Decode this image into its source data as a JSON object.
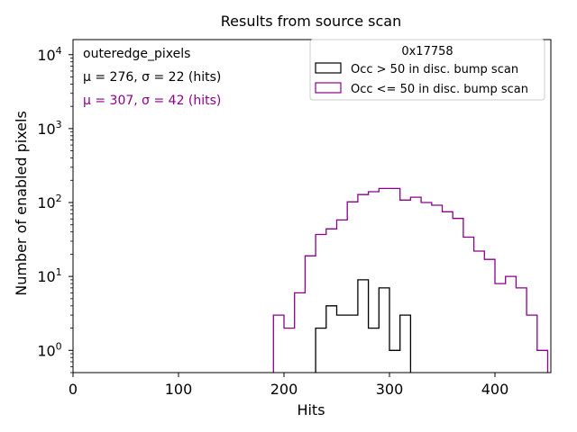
{
  "chart_data": {
    "type": "histogram",
    "title": "Results from source scan",
    "xlabel": "Hits",
    "ylabel": "Number of enabled pixels",
    "xlim": [
      0,
      453
    ],
    "ylim": [
      0.5,
      16000
    ],
    "yscale": "log",
    "xticks": [
      0,
      100,
      200,
      300,
      400
    ],
    "yticks": [
      {
        "value": 1,
        "base": "10",
        "exp": "0"
      },
      {
        "value": 10,
        "base": "10",
        "exp": "1"
      },
      {
        "value": 100,
        "base": "10",
        "exp": "2"
      },
      {
        "value": 1000,
        "base": "10",
        "exp": "3"
      },
      {
        "value": 10000,
        "base": "10",
        "exp": "4"
      }
    ],
    "bin_width": 10,
    "annotations": {
      "name": "outeredge_pixels",
      "series1_stats": "μ = 276, σ = 22 (hits)",
      "series2_stats": "μ = 307, σ = 42 (hits)"
    },
    "legend": {
      "title": "0x17758",
      "position": "top-right"
    },
    "series": [
      {
        "name": "Occ > 50 in disc. bump scan",
        "color": "#000000",
        "bins": [
          [
            230,
            2
          ],
          [
            240,
            4
          ],
          [
            250,
            3
          ],
          [
            260,
            3
          ],
          [
            270,
            9
          ],
          [
            280,
            2
          ],
          [
            290,
            7
          ],
          [
            300,
            1
          ],
          [
            310,
            3
          ]
        ]
      },
      {
        "name": "Occ <= 50 in disc. bump scan",
        "color": "#8b008b",
        "bins": [
          [
            190,
            3
          ],
          [
            200,
            2
          ],
          [
            210,
            6
          ],
          [
            220,
            19
          ],
          [
            230,
            37
          ],
          [
            240,
            44
          ],
          [
            250,
            58
          ],
          [
            260,
            102
          ],
          [
            270,
            128
          ],
          [
            280,
            140
          ],
          [
            290,
            155
          ],
          [
            300,
            155
          ],
          [
            310,
            108
          ],
          [
            320,
            118
          ],
          [
            330,
            100
          ],
          [
            340,
            92
          ],
          [
            350,
            75
          ],
          [
            360,
            61
          ],
          [
            370,
            34
          ],
          [
            380,
            22
          ],
          [
            390,
            17
          ],
          [
            400,
            8
          ],
          [
            410,
            10
          ],
          [
            420,
            7
          ],
          [
            430,
            3
          ],
          [
            440,
            1
          ]
        ]
      }
    ]
  }
}
